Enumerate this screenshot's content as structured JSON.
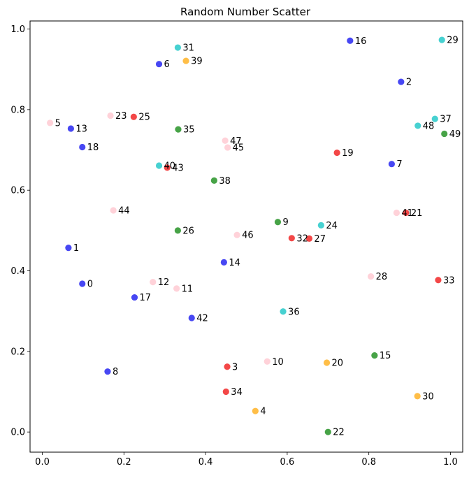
{
  "chart_data": {
    "type": "scatter",
    "title": "Random Number Scatter",
    "xlabel": "",
    "ylabel": "",
    "xlim": [
      -0.03,
      1.03
    ],
    "ylim": [
      -0.05,
      1.02
    ],
    "x_ticks": [
      "0.0",
      "0.2",
      "0.4",
      "0.6",
      "0.8",
      "1.0"
    ],
    "y_ticks": [
      "0.0",
      "0.2",
      "0.4",
      "0.6",
      "0.8",
      "1.0"
    ],
    "grid": false,
    "legend": "none",
    "colors": {
      "blue": "#0000ee",
      "red": "#ee0000",
      "green": "#007f00",
      "cyan": "#00bfbf",
      "orange": "#ffa500",
      "pink": "#ffc0cb"
    },
    "points": [
      {
        "label": "0",
        "x": 0.098,
        "y": 0.368,
        "color": "blue"
      },
      {
        "label": "1",
        "x": 0.064,
        "y": 0.457,
        "color": "blue"
      },
      {
        "label": "2",
        "x": 0.879,
        "y": 0.869,
        "color": "blue"
      },
      {
        "label": "3",
        "x": 0.453,
        "y": 0.162,
        "color": "red"
      },
      {
        "label": "4",
        "x": 0.522,
        "y": 0.052,
        "color": "orange"
      },
      {
        "label": "5",
        "x": 0.019,
        "y": 0.767,
        "color": "pink"
      },
      {
        "label": "6",
        "x": 0.286,
        "y": 0.913,
        "color": "blue"
      },
      {
        "label": "7",
        "x": 0.856,
        "y": 0.665,
        "color": "blue"
      },
      {
        "label": "8",
        "x": 0.16,
        "y": 0.15,
        "color": "blue"
      },
      {
        "label": "9",
        "x": 0.577,
        "y": 0.521,
        "color": "green"
      },
      {
        "label": "10",
        "x": 0.551,
        "y": 0.175,
        "color": "pink"
      },
      {
        "label": "11",
        "x": 0.329,
        "y": 0.356,
        "color": "pink"
      },
      {
        "label": "12",
        "x": 0.271,
        "y": 0.372,
        "color": "pink"
      },
      {
        "label": "13",
        "x": 0.07,
        "y": 0.753,
        "color": "blue"
      },
      {
        "label": "14",
        "x": 0.445,
        "y": 0.421,
        "color": "blue"
      },
      {
        "label": "15",
        "x": 0.814,
        "y": 0.19,
        "color": "green"
      },
      {
        "label": "16",
        "x": 0.754,
        "y": 0.971,
        "color": "blue"
      },
      {
        "label": "17",
        "x": 0.226,
        "y": 0.334,
        "color": "blue"
      },
      {
        "label": "18",
        "x": 0.098,
        "y": 0.707,
        "color": "blue"
      },
      {
        "label": "19",
        "x": 0.722,
        "y": 0.693,
        "color": "red"
      },
      {
        "label": "20",
        "x": 0.697,
        "y": 0.172,
        "color": "orange"
      },
      {
        "label": "21",
        "x": 0.891,
        "y": 0.544,
        "color": "red"
      },
      {
        "label": "22",
        "x": 0.7,
        "y": 0.0,
        "color": "green"
      },
      {
        "label": "23",
        "x": 0.167,
        "y": 0.785,
        "color": "pink"
      },
      {
        "label": "24",
        "x": 0.683,
        "y": 0.513,
        "color": "cyan"
      },
      {
        "label": "25",
        "x": 0.224,
        "y": 0.782,
        "color": "red"
      },
      {
        "label": "26",
        "x": 0.332,
        "y": 0.5,
        "color": "green"
      },
      {
        "label": "27",
        "x": 0.654,
        "y": 0.48,
        "color": "red"
      },
      {
        "label": "28",
        "x": 0.805,
        "y": 0.386,
        "color": "pink"
      },
      {
        "label": "29",
        "x": 0.979,
        "y": 0.973,
        "color": "cyan"
      },
      {
        "label": "30",
        "x": 0.919,
        "y": 0.089,
        "color": "orange"
      },
      {
        "label": "31",
        "x": 0.332,
        "y": 0.954,
        "color": "cyan"
      },
      {
        "label": "32",
        "x": 0.611,
        "y": 0.481,
        "color": "red"
      },
      {
        "label": "33",
        "x": 0.97,
        "y": 0.377,
        "color": "red"
      },
      {
        "label": "34",
        "x": 0.45,
        "y": 0.1,
        "color": "red"
      },
      {
        "label": "35",
        "x": 0.333,
        "y": 0.751,
        "color": "green"
      },
      {
        "label": "36",
        "x": 0.59,
        "y": 0.299,
        "color": "cyan"
      },
      {
        "label": "37",
        "x": 0.962,
        "y": 0.777,
        "color": "cyan"
      },
      {
        "label": "38",
        "x": 0.421,
        "y": 0.624,
        "color": "green"
      },
      {
        "label": "39",
        "x": 0.352,
        "y": 0.921,
        "color": "orange"
      },
      {
        "label": "40",
        "x": 0.286,
        "y": 0.661,
        "color": "cyan"
      },
      {
        "label": "41",
        "x": 0.868,
        "y": 0.544,
        "color": "pink"
      },
      {
        "label": "42",
        "x": 0.366,
        "y": 0.283,
        "color": "blue"
      },
      {
        "label": "43",
        "x": 0.306,
        "y": 0.656,
        "color": "red"
      },
      {
        "label": "44",
        "x": 0.174,
        "y": 0.55,
        "color": "pink"
      },
      {
        "label": "45",
        "x": 0.454,
        "y": 0.706,
        "color": "pink"
      },
      {
        "label": "46",
        "x": 0.477,
        "y": 0.489,
        "color": "pink"
      },
      {
        "label": "47",
        "x": 0.448,
        "y": 0.723,
        "color": "pink"
      },
      {
        "label": "48",
        "x": 0.92,
        "y": 0.76,
        "color": "cyan"
      },
      {
        "label": "49",
        "x": 0.985,
        "y": 0.74,
        "color": "green"
      }
    ]
  }
}
